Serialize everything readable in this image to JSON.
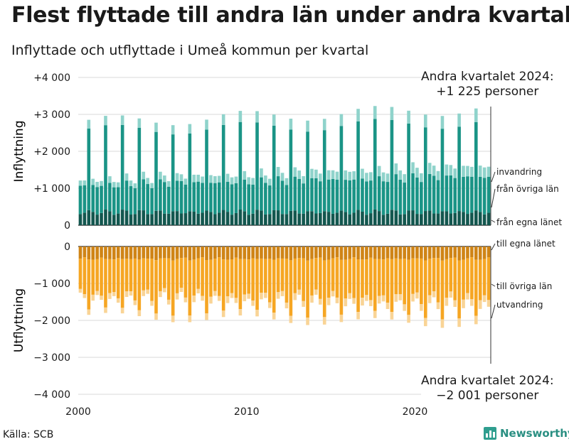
{
  "title": "Flest flyttade till andra län under andra kvartalet",
  "subtitle": "Inflyttade och utflyttade i Umeå kommun per kvartal",
  "source": "Källa: SCB",
  "brand": {
    "name": "Newsworthy",
    "icon": "bar-chart-icon"
  },
  "callouts": {
    "top_line1": "Andra kvartalet 2024:",
    "top_line2": "+1 225 personer",
    "bottom_line1": "Andra kvartalet 2024:",
    "bottom_line2": "−2 001 personer"
  },
  "colors": {
    "in_egna": "#13574f",
    "in_ovriga": "#1a9486",
    "in_invandring": "#8fd3cb",
    "out_egna": "#cf8416",
    "out_ovriga": "#f6a623",
    "out_utvandring": "#f9d496"
  },
  "chart_data": {
    "type": "bar",
    "stacked": true,
    "x_start_year": 2000,
    "quarters": 98,
    "x_ticks": [
      2000,
      2010,
      2020
    ],
    "panels": [
      {
        "ylabel": "Inflyttning",
        "ylim": [
          0,
          4000
        ],
        "y_ticks": [
          "0",
          "+1 000",
          "+2 000",
          "+3 000",
          "+4 000"
        ],
        "y_tick_values": [
          0,
          1000,
          2000,
          3000,
          4000
        ],
        "series": [
          {
            "name": "från egna länet",
            "color": "#13574f",
            "pattern": [
              300,
              320,
              400,
              380
            ],
            "trend": 0
          },
          {
            "name": "från övriga län",
            "color": "#1a9486",
            "pattern": [
              770,
              700,
              2150,
              760
            ],
            "trend": 2.5
          },
          {
            "name": "invandring",
            "color": "#8fd3cb",
            "pattern": [
              140,
              120,
              230,
              170
            ],
            "trend": 1.5
          }
        ]
      },
      {
        "ylabel": "Utflyttning",
        "ylim": [
          -4000,
          0
        ],
        "y_ticks": [
          "0",
          "−1 000",
          "−2 000",
          "−3 000",
          "−4 000"
        ],
        "y_tick_values": [
          0,
          -1000,
          -2000,
          -3000,
          -4000
        ],
        "series": [
          {
            "name": "till egna länet",
            "color": "#cf8416",
            "pattern": [
              -330,
              -310,
              -360,
              -340
            ],
            "trend": 0
          },
          {
            "name": "till övriga län",
            "color": "#f6a623",
            "pattern": [
              -820,
              -1060,
              -1380,
              -900
            ],
            "trend": -1.5
          },
          {
            "name": "utvandring",
            "color": "#f9d496",
            "pattern": [
              -100,
              -110,
              -150,
              -150
            ],
            "trend": -0.8
          }
        ]
      }
    ],
    "last_quarter_totals": {
      "in": 1225,
      "out": -2001
    }
  }
}
